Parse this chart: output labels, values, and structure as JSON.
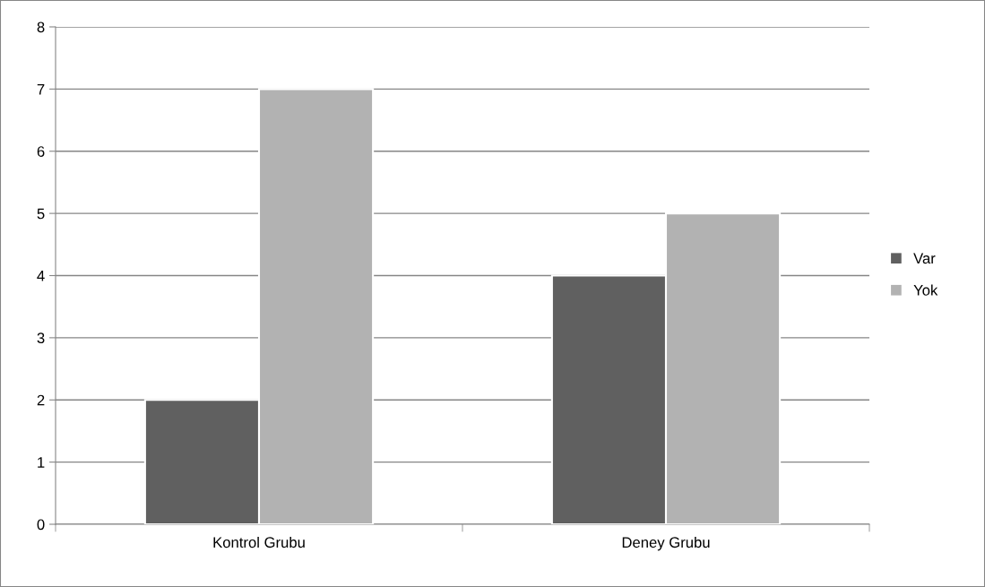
{
  "chart_data": {
    "type": "bar",
    "categories": [
      "Kontrol Grubu",
      "Deney Grubu"
    ],
    "series": [
      {
        "name": "Var",
        "color": "#606060",
        "values": [
          2,
          4
        ]
      },
      {
        "name": "Yok",
        "color": "#b2b2b2",
        "values": [
          7,
          5
        ]
      }
    ],
    "ylim": [
      0,
      8
    ],
    "yticks": [
      0,
      1,
      2,
      3,
      4,
      5,
      6,
      7,
      8
    ],
    "grid": "y",
    "legend": "right"
  }
}
